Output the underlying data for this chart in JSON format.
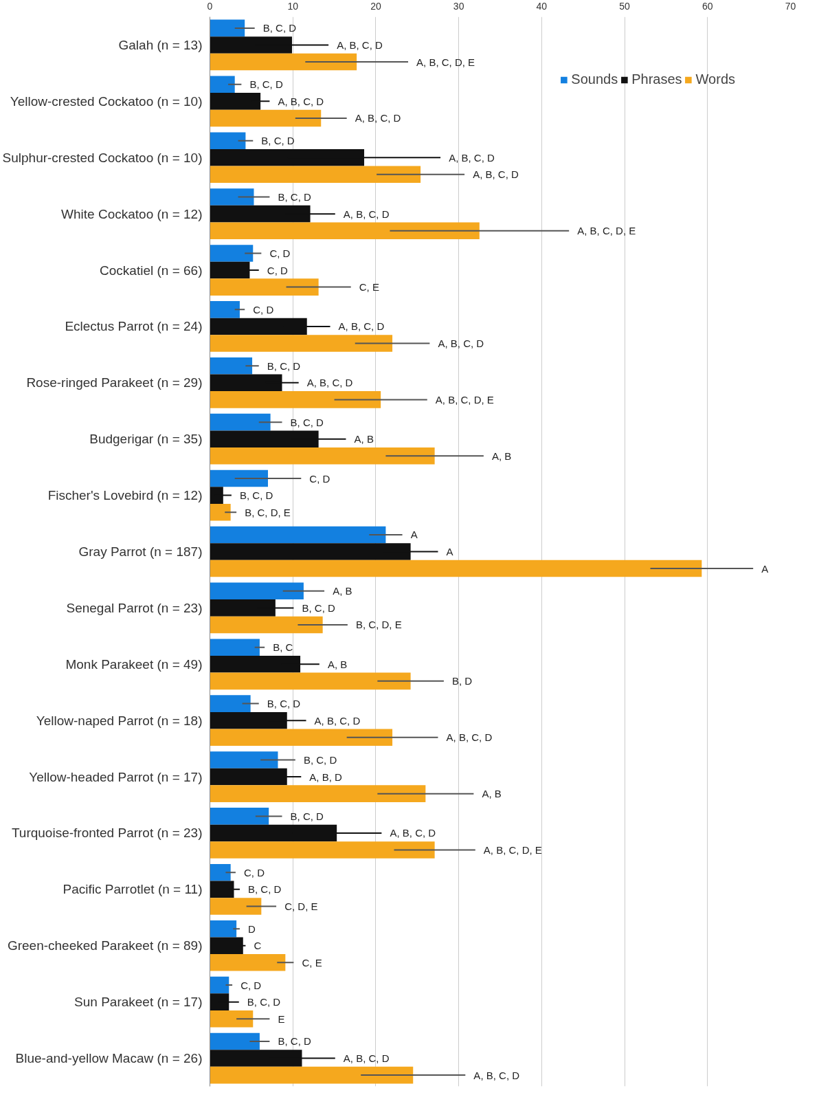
{
  "chart_data": {
    "type": "bar",
    "orientation": "horizontal",
    "categories": [
      "Galah (n = 13)",
      "Yellow-crested Cockatoo (n = 10)",
      "Sulphur-crested Cockatoo (n = 10)",
      "White Cockatoo (n = 12)",
      "Cockatiel (n = 66)",
      "Eclectus Parrot (n = 24)",
      "Rose-ringed Parakeet (n = 29)",
      "Budgerigar (n = 35)",
      "Fischer's Lovebird (n = 12)",
      "Gray Parrot (n = 187)",
      "Senegal Parrot (n = 23)",
      "Monk Parakeet (n = 49)",
      "Yellow-naped Parrot (n = 18)",
      "Yellow-headed Parrot (n = 17)",
      "Turquoise-fronted Parrot (n = 23)",
      "Pacific Parrotlet (n = 11)",
      "Green-cheeked Parakeet (n = 89)",
      "Sun Parakeet (n = 17)",
      "Blue-and-yellow Macaw (n = 26)"
    ],
    "series": [
      {
        "name": "Sounds",
        "color": "#1380e0",
        "values": [
          4.2,
          3.0,
          4.3,
          5.3,
          5.2,
          3.6,
          5.1,
          7.3,
          7.0,
          21.2,
          11.3,
          6.0,
          4.9,
          8.2,
          7.1,
          2.5,
          3.2,
          2.3,
          6.0
        ],
        "errors": [
          1.2,
          0.8,
          0.9,
          1.9,
          1.0,
          0.6,
          0.8,
          1.4,
          4.0,
          2.0,
          2.5,
          0.6,
          1.0,
          2.1,
          1.6,
          0.6,
          0.4,
          0.4,
          1.2
        ]
      },
      {
        "name": "Phrases",
        "color": "#111111",
        "values": [
          9.9,
          6.1,
          18.6,
          12.1,
          4.8,
          11.7,
          8.7,
          13.1,
          1.6,
          24.2,
          7.9,
          10.9,
          9.3,
          9.3,
          15.3,
          2.9,
          4.0,
          2.3,
          11.1
        ],
        "errors": [
          4.4,
          1.1,
          9.2,
          3.0,
          1.1,
          2.8,
          2.0,
          3.3,
          1.0,
          3.3,
          2.2,
          2.3,
          2.3,
          1.7,
          5.4,
          0.7,
          0.3,
          1.2,
          4.0
        ]
      },
      {
        "name": "Words",
        "color": "#f5a81e",
        "values": [
          17.7,
          13.4,
          25.4,
          32.5,
          13.1,
          22.0,
          20.6,
          27.1,
          2.5,
          59.3,
          13.6,
          24.2,
          22.0,
          26.0,
          27.1,
          6.2,
          9.1,
          5.2,
          24.5
        ],
        "errors": [
          6.2,
          3.1,
          5.3,
          10.8,
          3.9,
          4.5,
          5.6,
          5.9,
          0.7,
          6.2,
          3.0,
          4.0,
          5.5,
          5.8,
          4.9,
          1.8,
          1.0,
          2.0,
          6.3
        ]
      }
    ],
    "annotations": [
      "B, C, D",
      "A, B, C, D",
      "A, B, C, D, E",
      "B, C, D",
      "A, B, C, D",
      "A, B, C, D",
      "B, C, D",
      "A, B, C, D",
      "A, B, C, D",
      "B, C, D",
      "A, B, C, D",
      "A, B, C, D, E",
      "C, D",
      "C, D",
      "C, E",
      "C, D",
      "A, B, C, D",
      "A, B, C, D",
      "B, C, D",
      "A, B, C, D",
      "A, B, C, D, E",
      "B, C, D",
      "A, B",
      "A, B",
      "C, D",
      "B, C, D",
      "B, C, D, E",
      "A",
      "A",
      "A",
      "A, B",
      "B, C, D",
      "B, C, D, E",
      "B, C",
      "A, B",
      "B, D",
      "B, C, D",
      "A, B, C, D",
      "A, B, C, D",
      "B, C, D",
      "A, B, D",
      "A, B",
      "B, C, D",
      "A, B, C, D",
      "A, B, C, D, E",
      "C, D",
      "B, C, D",
      "C, D, E",
      "D",
      "C",
      "C, E",
      "C, D",
      "B, C, D",
      "E",
      "B, C, D",
      "A, B, C, D",
      "A, B, C, D"
    ],
    "xlim": [
      0,
      70
    ],
    "xticks": [
      0,
      10,
      20,
      30,
      40,
      50,
      60,
      70
    ],
    "grid": "x",
    "legend": "top right"
  }
}
